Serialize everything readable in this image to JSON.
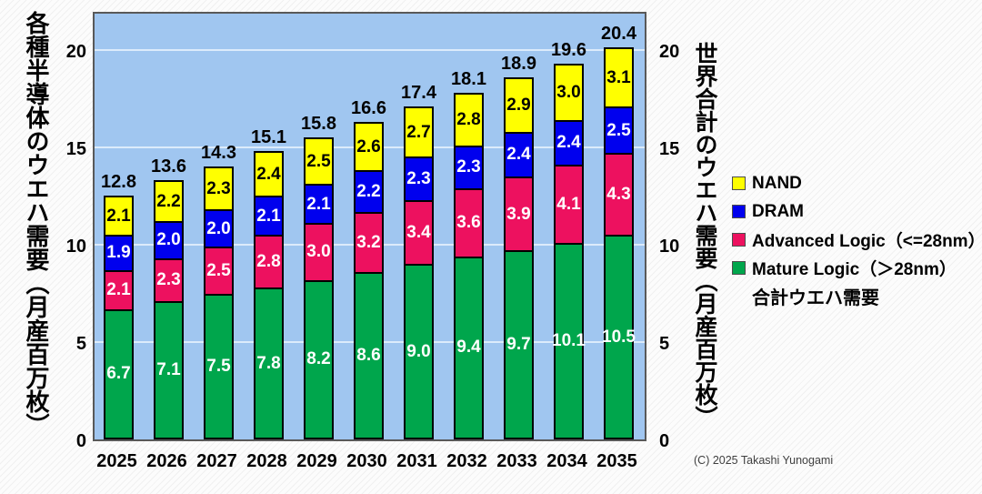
{
  "chart_data": {
    "type": "bar",
    "stacked": true,
    "categories": [
      "2025",
      "2026",
      "2027",
      "2028",
      "2029",
      "2030",
      "2031",
      "2032",
      "2033",
      "2034",
      "2035"
    ],
    "series": [
      {
        "key": "mature-logic",
        "name": "Mature Logic（＞28nm）",
        "color": "#00A64C",
        "label_color": "#FFFFFF",
        "values": [
          6.7,
          7.1,
          7.5,
          7.8,
          8.2,
          8.6,
          9.0,
          9.4,
          9.7,
          10.1,
          10.5
        ]
      },
      {
        "key": "advanced-logic",
        "name": "Advanced Logic（<=28nm）",
        "color": "#ED115F",
        "label_color": "#FFFFFF",
        "values": [
          2.1,
          2.3,
          2.5,
          2.8,
          3.0,
          3.2,
          3.4,
          3.6,
          3.9,
          4.1,
          4.3
        ]
      },
      {
        "key": "dram",
        "name": "DRAM",
        "color": "#0000EE",
        "label_color": "#FFFFFF",
        "values": [
          1.9,
          2.0,
          2.0,
          2.1,
          2.1,
          2.2,
          2.3,
          2.3,
          2.4,
          2.4,
          2.5
        ]
      },
      {
        "key": "nand",
        "name": "NAND",
        "color": "#FFFF00",
        "label_color": "#000000",
        "values": [
          2.1,
          2.2,
          2.3,
          2.4,
          2.5,
          2.6,
          2.7,
          2.8,
          2.9,
          3.0,
          3.1
        ]
      }
    ],
    "totals": [
      12.8,
      13.6,
      14.3,
      15.1,
      15.8,
      16.6,
      17.4,
      18.1,
      18.9,
      19.6,
      20.4
    ],
    "y_ticks": [
      0,
      5,
      10,
      15,
      20
    ],
    "ylim": [
      0,
      20
    ],
    "grid": true,
    "plot_bg": "#A0C6F0",
    "grid_color": "#DCEBFB",
    "legend_position": "right",
    "title": ""
  },
  "left_axis": {
    "title": "各種半導体のウエハ需要（月産百万枚）"
  },
  "right_axis": {
    "title": "世界合計のウエハ需要（月産百万枚）"
  },
  "legend": {
    "items": [
      {
        "label": "NAND",
        "color": "#FFFF00"
      },
      {
        "label": "DRAM",
        "color": "#0000EE"
      },
      {
        "label": "Advanced Logic（<=28nm）",
        "color": "#ED115F"
      },
      {
        "label": "Mature Logic（＞28nm）",
        "color": "#00A64C"
      },
      {
        "label": "合計ウエハ需要",
        "color": null
      }
    ]
  },
  "footer": {
    "copyright": "(C) 2025 Takashi Yunogami"
  }
}
